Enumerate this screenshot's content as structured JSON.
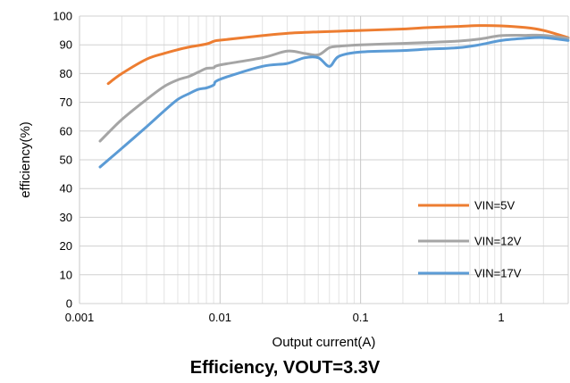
{
  "chart_data": {
    "type": "line",
    "title": "Efficiency, VOUT=3.3V",
    "xlabel": "Output current(A)",
    "ylabel": "efficiency(%)",
    "xscale": "log",
    "xlim": [
      0.001,
      3
    ],
    "ylim": [
      0,
      100
    ],
    "x_ticks": [
      0.001,
      0.01,
      0.1,
      1
    ],
    "x_tick_labels": [
      "0.001",
      "0.01",
      "0.1",
      "1"
    ],
    "y_ticks": [
      0,
      10,
      20,
      30,
      40,
      50,
      60,
      70,
      80,
      90,
      100
    ],
    "y_tick_labels": [
      "0",
      "10",
      "20",
      "30",
      "40",
      "50",
      "60",
      "70",
      "80",
      "90",
      "100"
    ],
    "grid": true,
    "legend_position": "bottom-right",
    "series": [
      {
        "name": "VIN=5V",
        "color": "#ED7D31",
        "x": [
          0.0016,
          0.002,
          0.003,
          0.004,
          0.005,
          0.006,
          0.008,
          0.009,
          0.01,
          0.02,
          0.03,
          0.05,
          0.1,
          0.2,
          0.3,
          0.5,
          0.7,
          1.0,
          1.5,
          2.0,
          3.0
        ],
        "y": [
          76.5,
          80,
          85,
          87,
          88.3,
          89.2,
          90.3,
          91.2,
          91.6,
          93.2,
          94,
          94.5,
          95,
          95.5,
          96,
          96.4,
          96.7,
          96.6,
          96,
          95,
          92.5
        ]
      },
      {
        "name": "VIN=12V",
        "color": "#A5A5A5",
        "x": [
          0.0014,
          0.002,
          0.003,
          0.004,
          0.005,
          0.006,
          0.007,
          0.008,
          0.009,
          0.01,
          0.02,
          0.03,
          0.04,
          0.05,
          0.06,
          0.07,
          0.1,
          0.2,
          0.3,
          0.5,
          0.7,
          1.0,
          1.5,
          2.0,
          3.0
        ],
        "y": [
          56.5,
          64,
          71,
          75.5,
          77.8,
          79,
          80.5,
          81.8,
          82,
          83,
          85.5,
          87.8,
          87,
          86.5,
          89,
          89.5,
          90,
          90.5,
          90.8,
          91.3,
          92,
          93.2,
          93.3,
          93.3,
          92.3
        ]
      },
      {
        "name": "VIN=17V",
        "color": "#5B9BD5",
        "x": [
          0.0014,
          0.002,
          0.003,
          0.004,
          0.005,
          0.006,
          0.007,
          0.008,
          0.009,
          0.01,
          0.02,
          0.03,
          0.04,
          0.05,
          0.06,
          0.07,
          0.1,
          0.2,
          0.3,
          0.5,
          0.7,
          1.0,
          1.5,
          2.0,
          3.0
        ],
        "y": [
          47.5,
          54,
          61.5,
          67,
          71,
          73,
          74.5,
          75,
          76,
          78,
          82.5,
          83.5,
          85.5,
          85.5,
          82.5,
          86,
          87.5,
          88,
          88.5,
          89,
          90,
          91.5,
          92.3,
          92.5,
          91.5
        ]
      }
    ]
  }
}
